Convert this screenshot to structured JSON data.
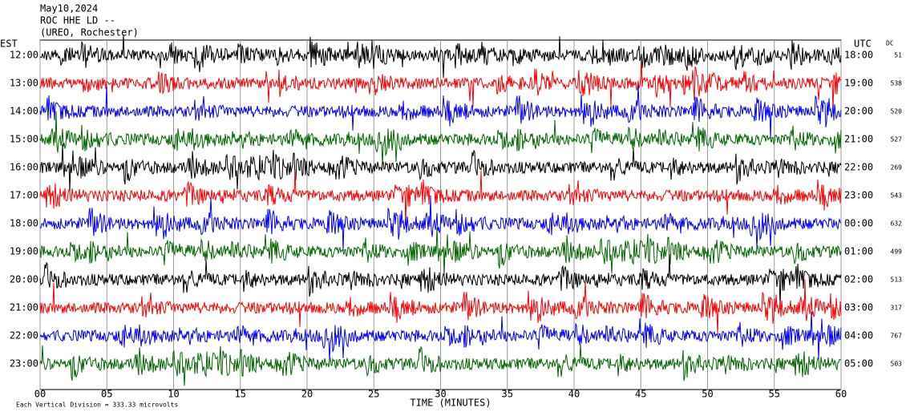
{
  "chart_data": {
    "type": "helicorder",
    "title_lines": [
      "May10,2024",
      "ROC HHE LD --",
      "(UREO, Rochester)"
    ],
    "left_zone": "EST",
    "right_zone": "UTC",
    "dc_header": "DC",
    "x_label": "TIME (MINUTES)",
    "footnote": "Each Vertical Division =  333.33 microvolts",
    "xlim": [
      0,
      60
    ],
    "xticks": [
      {
        "value": 0,
        "label": "00"
      },
      {
        "value": 5,
        "label": "05"
      },
      10,
      15,
      20,
      25,
      30,
      35,
      40,
      45,
      50,
      55,
      60
    ],
    "est_labels": [
      "12:00",
      "13:00",
      "14:00",
      "15:00",
      "16:00",
      "17:00",
      "18:00",
      "19:00",
      "20:00",
      "21:00",
      "22:00",
      "23:00"
    ],
    "utc_labels": [
      "18:00",
      "19:00",
      "20:00",
      "21:00",
      "22:00",
      "23:00",
      "00:00",
      "01:00",
      "02:00",
      "03:00",
      "04:00",
      "05:00"
    ],
    "dc_values": [
      51,
      538,
      520,
      527,
      269,
      543,
      632,
      499,
      513,
      317,
      767,
      503
    ],
    "trace_colors": [
      "#000000",
      "#ff0000",
      "#0000ff",
      "#006600"
    ]
  }
}
